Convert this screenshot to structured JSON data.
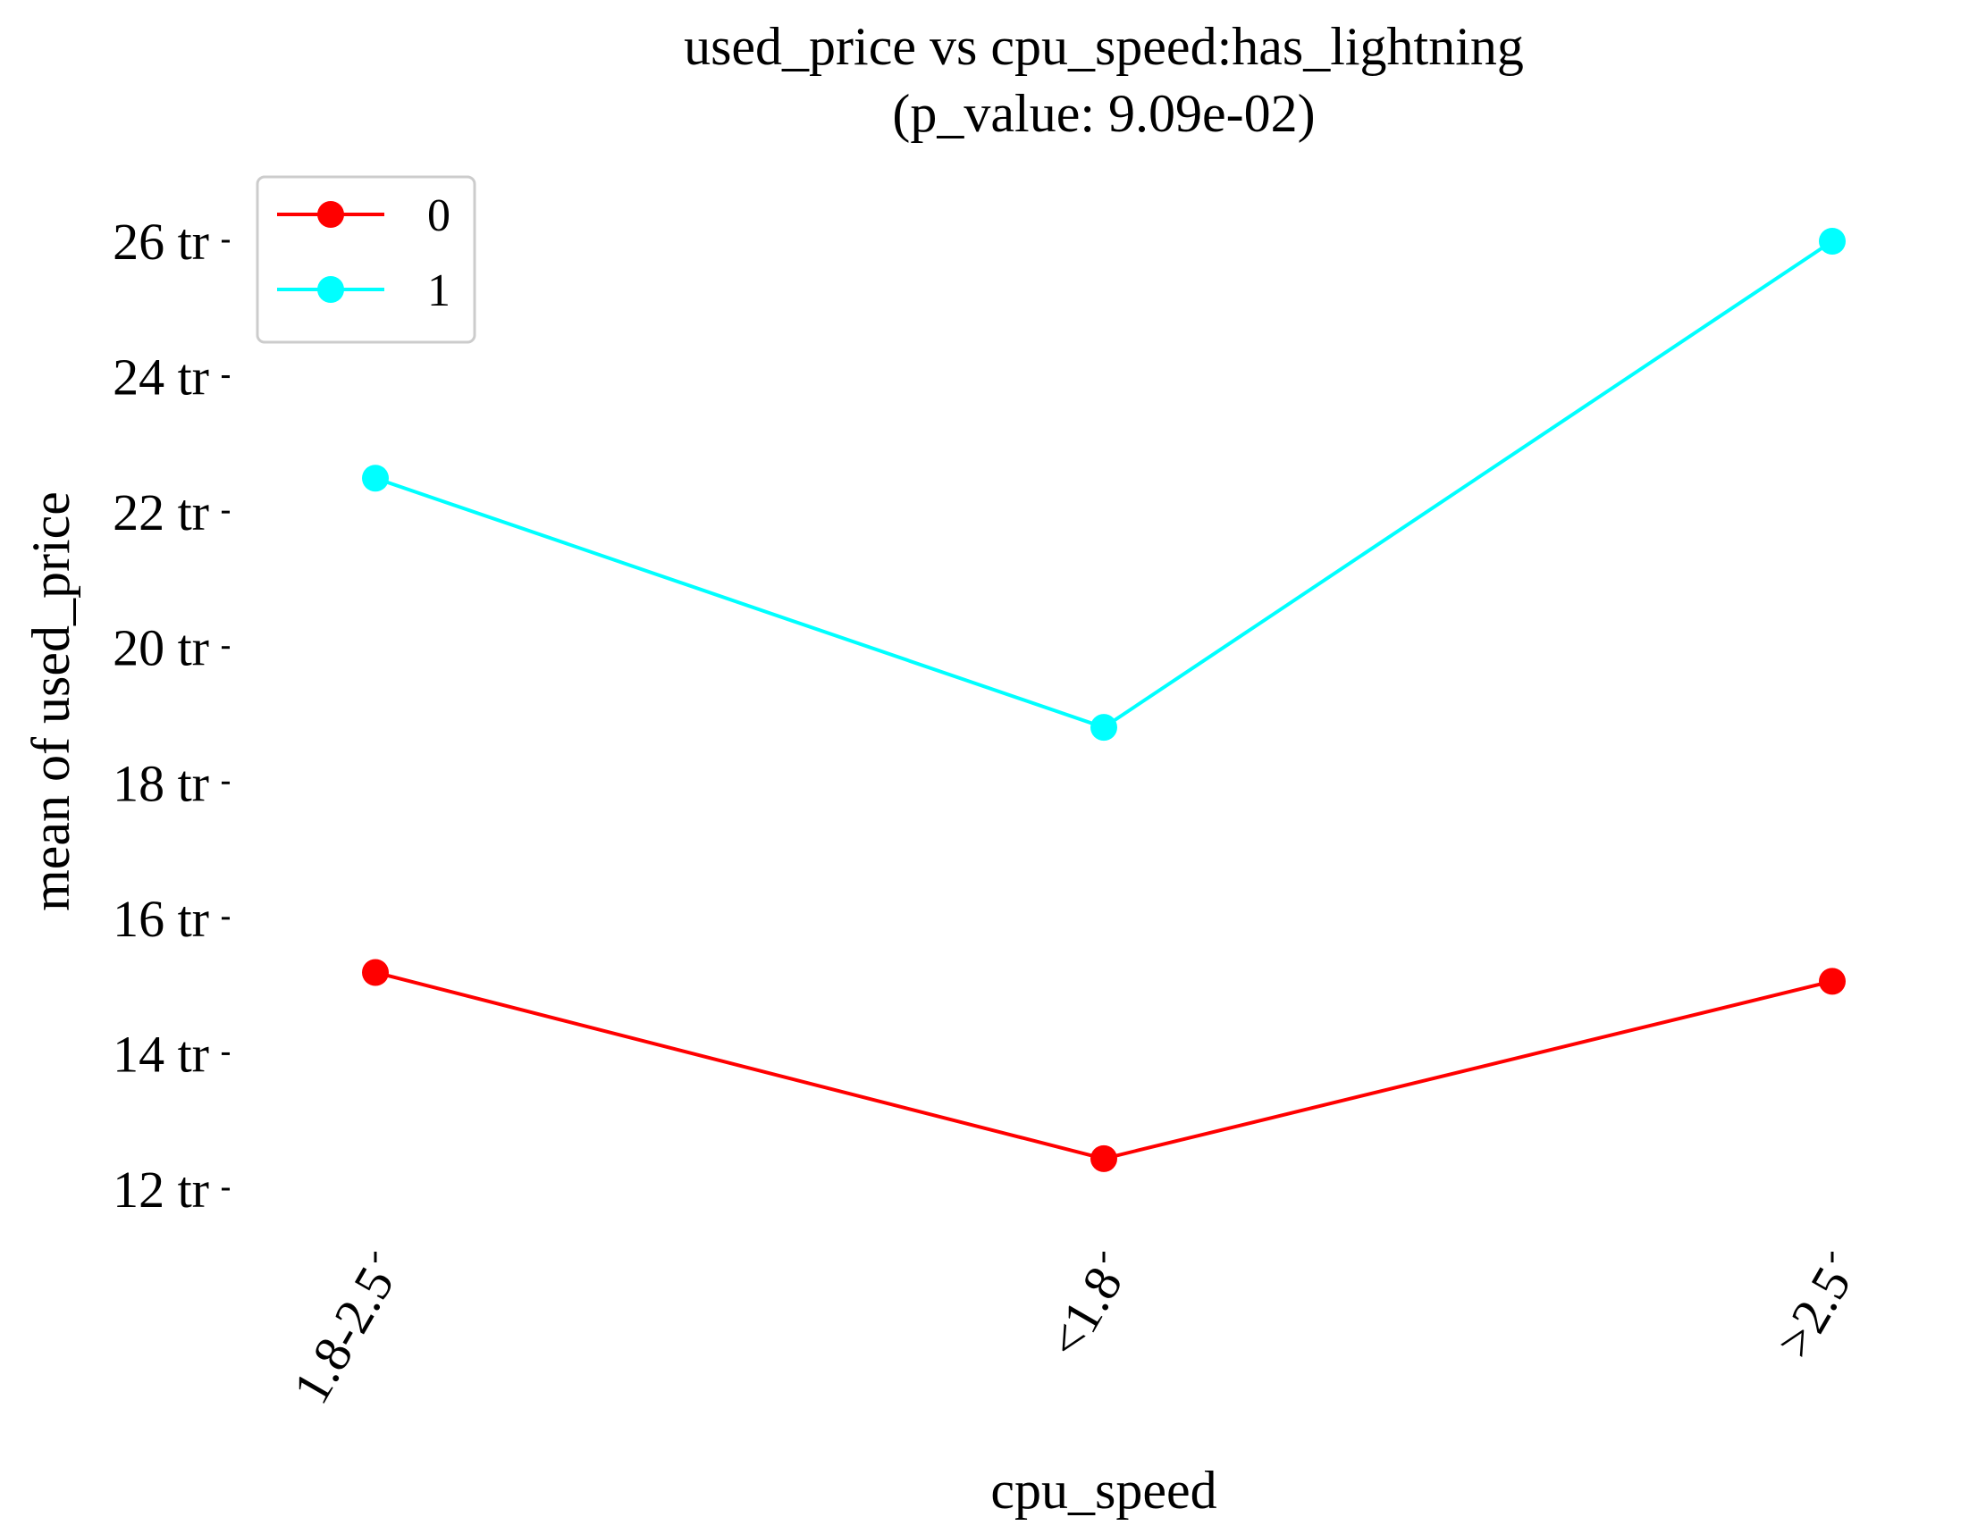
{
  "chart_data": {
    "type": "line",
    "title": "used_price vs cpu_speed:has_lightning",
    "subtitle": "(p_value: 9.09e-02)",
    "xlabel": "cpu_speed",
    "ylabel": "mean of used_price",
    "categories": [
      "1.8-2.5",
      "<1.8",
      ">2.5"
    ],
    "ylim": [
      11,
      27.2
    ],
    "yticks": [
      12,
      14,
      16,
      18,
      20,
      22,
      24,
      26
    ],
    "ytick_labels": [
      "12 tr",
      "14 tr",
      "16 tr",
      "18 tr",
      "20 tr",
      "22 tr",
      "24 tr",
      "26 tr"
    ],
    "grid": false,
    "legend_position": "top-left",
    "series": [
      {
        "name": "0",
        "color": "#ff0000",
        "values": [
          15.2,
          12.45,
          15.07
        ]
      },
      {
        "name": "1",
        "color": "#00ffff",
        "values": [
          22.5,
          18.82,
          26.0
        ]
      }
    ]
  }
}
